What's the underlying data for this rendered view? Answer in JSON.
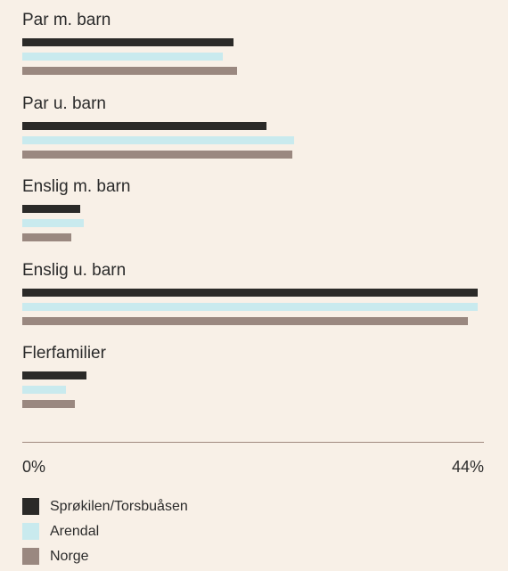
{
  "chart_data": {
    "type": "bar",
    "orientation": "horizontal",
    "categories": [
      "Par m. barn",
      "Par u. barn",
      "Enslig m. barn",
      "Enslig u. barn",
      "Flerfamilier"
    ],
    "series": [
      {
        "name": "Sprøkilen/Torsbuåsen",
        "color": "#2b2a28",
        "values": [
          20.3,
          23.5,
          5.6,
          43.8,
          6.2
        ]
      },
      {
        "name": "Arendal",
        "color": "#c9eaee",
        "values": [
          19.3,
          26.2,
          5.9,
          43.8,
          4.2
        ]
      },
      {
        "name": "Norge",
        "color": "#9a8880",
        "values": [
          20.7,
          26.0,
          4.7,
          42.9,
          5.1
        ]
      }
    ],
    "xlim": [
      0,
      44
    ],
    "ticks": {
      "min_label": "0%",
      "max_label": "44%"
    },
    "legend_position": "bottom-left",
    "grid": false
  }
}
